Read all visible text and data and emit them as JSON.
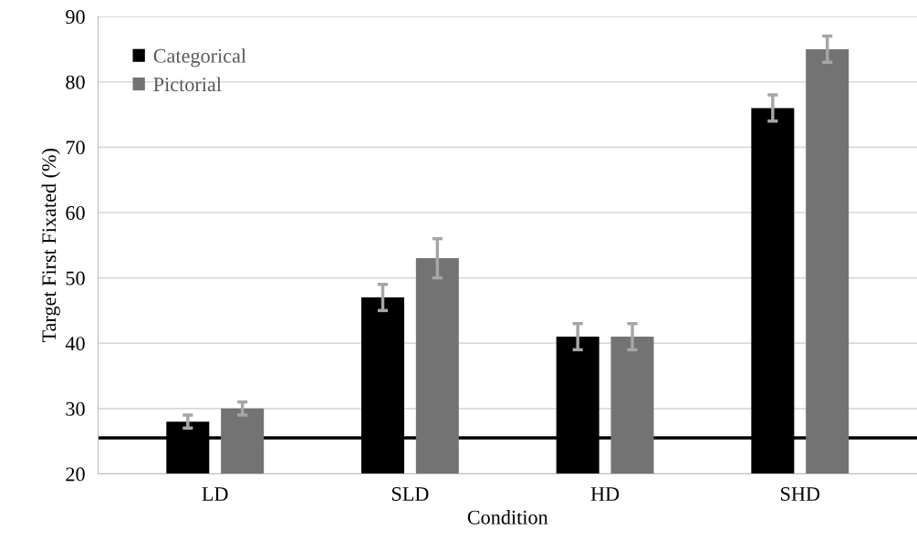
{
  "chart_data": {
    "type": "bar",
    "xlabel": "Condition",
    "ylabel": "Target First Fixated (%)",
    "categories": [
      "LD",
      "SLD",
      "HD",
      "SHD"
    ],
    "series": [
      {
        "name": "Categorical",
        "color": "#000000",
        "values": [
          28,
          47,
          41,
          76
        ],
        "errors": [
          1,
          2,
          2,
          2
        ]
      },
      {
        "name": "Pictorial",
        "color": "#737373",
        "values": [
          30,
          53,
          41,
          85
        ],
        "errors": [
          1,
          3,
          2,
          2
        ]
      }
    ],
    "ylim": [
      20,
      90
    ],
    "yticks": [
      20,
      30,
      40,
      50,
      60,
      70,
      80,
      90
    ],
    "grid": "y",
    "legend": "top left",
    "ref_lines": [
      {
        "axis": "y",
        "value": 25.5,
        "color": "#000000",
        "line_style": "solid"
      }
    ]
  }
}
